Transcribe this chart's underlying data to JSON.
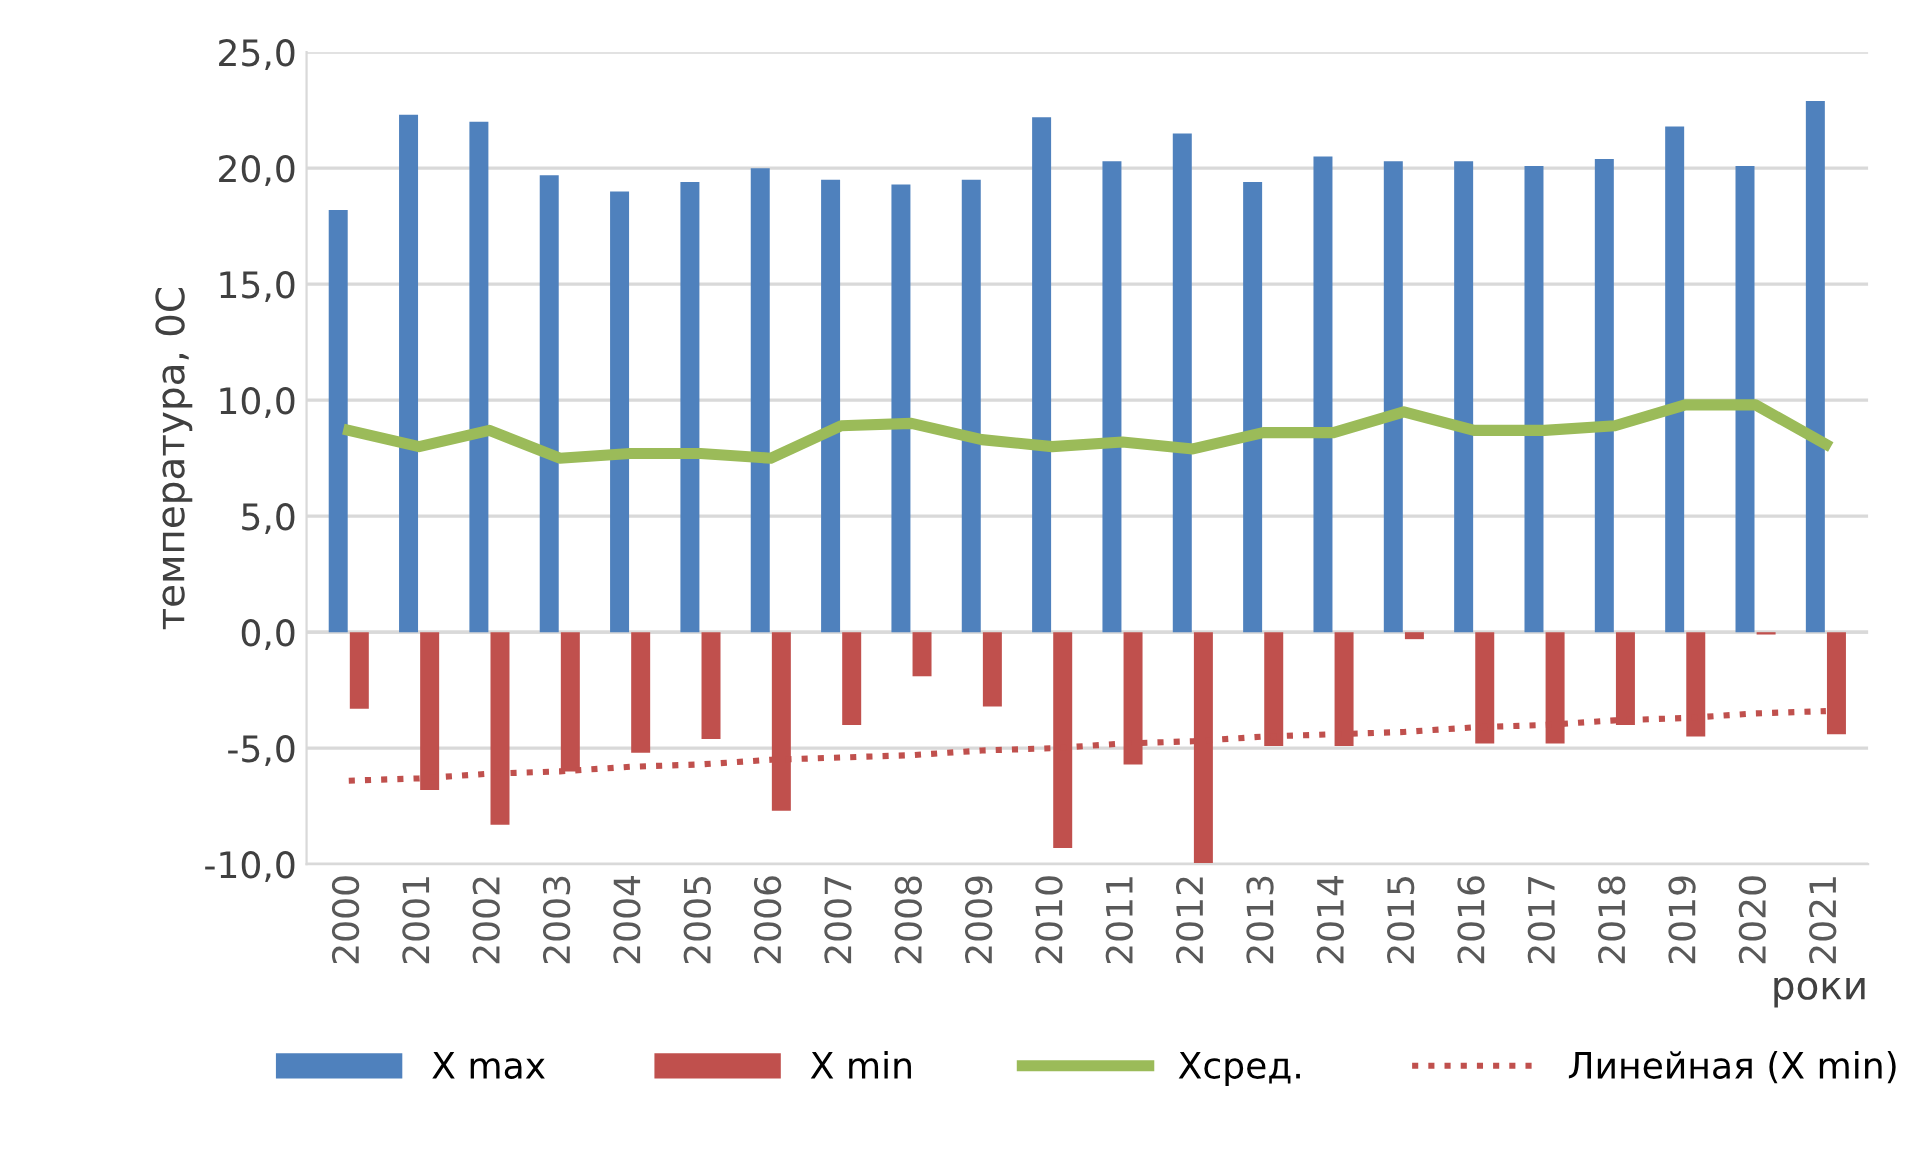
{
  "chart_data": {
    "type": "bar",
    "ylabel": "температура, 0C",
    "xlabel": "роки",
    "categories": [
      "2000",
      "2001",
      "2002",
      "2003",
      "2004",
      "2005",
      "2006",
      "2007",
      "2008",
      "2009",
      "2010",
      "2011",
      "2012",
      "2013",
      "2014",
      "2015",
      "2016",
      "2017",
      "2018",
      "2019",
      "2020",
      "2021"
    ],
    "series": [
      {
        "name": "X max",
        "color": "#4f81bd",
        "values": [
          18.2,
          22.3,
          22.0,
          19.7,
          19.0,
          19.4,
          20.0,
          19.5,
          19.3,
          19.5,
          22.2,
          20.3,
          21.5,
          19.4,
          20.5,
          20.3,
          20.3,
          20.1,
          20.4,
          21.8,
          20.1,
          22.9
        ]
      },
      {
        "name": "X min",
        "color": "#c0504d",
        "values": [
          -3.3,
          -6.8,
          -8.3,
          -6.0,
          -5.2,
          -4.6,
          -7.7,
          -4.0,
          -1.9,
          -3.2,
          -9.3,
          -5.7,
          -10.0,
          -4.9,
          -4.9,
          -0.3,
          -4.8,
          -4.8,
          -4.0,
          -4.5,
          -0.1,
          -4.4
        ]
      },
      {
        "name": "Xсред.",
        "type": "line",
        "color": "#9bbb59",
        "values": [
          8.7,
          8.0,
          8.7,
          7.5,
          7.7,
          7.7,
          7.5,
          8.9,
          9.0,
          8.3,
          8.0,
          8.2,
          7.9,
          8.6,
          8.6,
          9.5,
          8.7,
          8.7,
          8.9,
          9.8,
          9.8,
          8.1
        ]
      },
      {
        "name": "Линейная (X min)",
        "type": "line",
        "line_style": "dotted",
        "color": "#c0504d",
        "values": [
          -6.4,
          -6.3,
          -6.1,
          -6.0,
          -5.8,
          -5.7,
          -5.5,
          -5.4,
          -5.3,
          -5.1,
          -5.0,
          -4.8,
          -4.7,
          -4.5,
          -4.4,
          -4.3,
          -4.1,
          -4.0,
          -3.8,
          -3.7,
          -3.5,
          -3.4
        ]
      }
    ],
    "ylim": [
      -10,
      25
    ],
    "yticks": [
      {
        "value": -10,
        "label": "-10,0"
      },
      {
        "value": -5,
        "label": "-5,0"
      },
      {
        "value": 0,
        "label": "0,0"
      },
      {
        "value": 5,
        "label": "5,0"
      },
      {
        "value": 10,
        "label": "10,0"
      },
      {
        "value": 15,
        "label": "15,0"
      },
      {
        "value": 20,
        "label": "20,0"
      },
      {
        "value": 25,
        "label": "25,0"
      }
    ],
    "grid": "y",
    "legend": "bottom"
  }
}
